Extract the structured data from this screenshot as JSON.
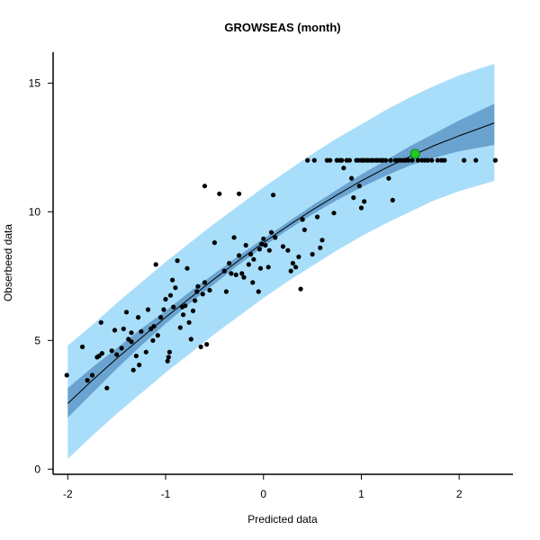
{
  "chart_data": {
    "type": "scatter",
    "title": "GROWSEAS (month)",
    "xlabel": "Predicted data",
    "ylabel": "Obserbeed data",
    "xlim": [
      -2.15,
      2.55
    ],
    "ylim": [
      -0.2,
      16.2
    ],
    "x_ticks": [
      -2,
      -1,
      0,
      1,
      2
    ],
    "y_ticks": [
      0,
      5,
      10,
      15
    ],
    "x_tick_labels": [
      "-2",
      "-1",
      "0",
      "1",
      "2"
    ],
    "y_tick_labels": [
      "0",
      "5",
      "10",
      "15"
    ],
    "grid": false,
    "colors": {
      "prediction_band": "#a8defa",
      "confidence_band": "#6aa3cf",
      "fit_line": "#000000",
      "points": "#000000",
      "highlight_point": "#22cc22",
      "highlight_outline": "#118811"
    },
    "fit_curve": {
      "x": [
        -2.0,
        -1.75,
        -1.5,
        -1.25,
        -1.0,
        -0.75,
        -0.5,
        -0.25,
        0.0,
        0.25,
        0.5,
        0.75,
        1.0,
        1.25,
        1.5,
        1.75,
        2.0,
        2.36
      ],
      "fit": [
        2.55,
        3.45,
        4.3,
        5.1,
        5.9,
        6.65,
        7.4,
        8.12,
        8.8,
        9.45,
        10.07,
        10.65,
        11.2,
        11.7,
        12.15,
        12.58,
        12.95,
        13.45
      ],
      "ci_lower": [
        2.0,
        2.95,
        3.9,
        4.8,
        5.65,
        6.45,
        7.2,
        7.95,
        8.65,
        9.3,
        9.9,
        10.45,
        10.95,
        11.4,
        11.8,
        12.1,
        12.35,
        12.6
      ],
      "ci_upper": [
        3.15,
        3.95,
        4.7,
        5.45,
        6.15,
        6.9,
        7.6,
        8.3,
        8.95,
        9.6,
        10.25,
        10.85,
        11.45,
        12.0,
        12.55,
        13.05,
        13.55,
        14.2
      ],
      "pi_lower": [
        0.4,
        1.3,
        2.15,
        2.95,
        3.75,
        4.5,
        5.25,
        5.95,
        6.65,
        7.3,
        7.9,
        8.5,
        9.05,
        9.55,
        10.0,
        10.45,
        10.8,
        11.2
      ],
      "pi_upper": [
        4.8,
        5.6,
        6.45,
        7.25,
        8.05,
        8.8,
        9.55,
        10.25,
        10.95,
        11.6,
        12.25,
        12.85,
        13.4,
        13.95,
        14.45,
        14.9,
        15.3,
        15.75
      ]
    },
    "points": [
      [
        -2.01,
        3.65
      ],
      [
        -1.85,
        4.75
      ],
      [
        -1.8,
        3.45
      ],
      [
        -1.75,
        3.65
      ],
      [
        -1.7,
        4.35
      ],
      [
        -1.68,
        4.4
      ],
      [
        -1.66,
        5.7
      ],
      [
        -1.65,
        4.5
      ],
      [
        -1.6,
        3.15
      ],
      [
        -1.55,
        4.6
      ],
      [
        -1.52,
        5.4
      ],
      [
        -1.5,
        4.45
      ],
      [
        -1.45,
        4.7
      ],
      [
        -1.43,
        5.45
      ],
      [
        -1.4,
        6.1
      ],
      [
        -1.38,
        5.05
      ],
      [
        -1.35,
        5.3
      ],
      [
        -1.35,
        4.95
      ],
      [
        -1.33,
        3.85
      ],
      [
        -1.3,
        4.4
      ],
      [
        -1.28,
        5.9
      ],
      [
        -1.27,
        4.05
      ],
      [
        -1.25,
        5.35
      ],
      [
        -1.2,
        4.55
      ],
      [
        -1.18,
        6.2
      ],
      [
        -1.15,
        5.45
      ],
      [
        -1.13,
        5.0
      ],
      [
        -1.12,
        5.55
      ],
      [
        -1.1,
        7.95
      ],
      [
        -1.08,
        5.2
      ],
      [
        -1.05,
        5.9
      ],
      [
        -1.02,
        6.2
      ],
      [
        -1.0,
        6.6
      ],
      [
        -0.98,
        4.2
      ],
      [
        -0.97,
        4.35
      ],
      [
        -0.96,
        4.55
      ],
      [
        -0.95,
        6.75
      ],
      [
        -0.93,
        7.35
      ],
      [
        -0.92,
        6.3
      ],
      [
        -0.9,
        7.05
      ],
      [
        -0.88,
        8.1
      ],
      [
        -0.85,
        5.5
      ],
      [
        -0.83,
        6.3
      ],
      [
        -0.82,
        6.0
      ],
      [
        -0.8,
        6.35
      ],
      [
        -0.78,
        7.8
      ],
      [
        -0.76,
        5.7
      ],
      [
        -0.74,
        5.05
      ],
      [
        -0.72,
        6.15
      ],
      [
        -0.7,
        6.55
      ],
      [
        -0.68,
        6.9
      ],
      [
        -0.67,
        7.1
      ],
      [
        -0.64,
        4.75
      ],
      [
        -0.62,
        6.8
      ],
      [
        -0.6,
        7.25
      ],
      [
        -0.58,
        4.85
      ],
      [
        -0.6,
        11.0
      ],
      [
        -0.55,
        6.95
      ],
      [
        -0.5,
        8.8
      ],
      [
        -0.45,
        10.7
      ],
      [
        -0.4,
        7.7
      ],
      [
        -0.38,
        6.9
      ],
      [
        -0.35,
        8.0
      ],
      [
        -0.33,
        7.6
      ],
      [
        -0.3,
        9.0
      ],
      [
        -0.28,
        7.55
      ],
      [
        -0.25,
        10.7
      ],
      [
        -0.25,
        8.3
      ],
      [
        -0.22,
        7.6
      ],
      [
        -0.2,
        7.45
      ],
      [
        -0.18,
        8.7
      ],
      [
        -0.15,
        7.95
      ],
      [
        -0.13,
        8.35
      ],
      [
        -0.11,
        7.25
      ],
      [
        -0.1,
        8.15
      ],
      [
        -0.05,
        6.9
      ],
      [
        -0.04,
        8.55
      ],
      [
        -0.03,
        7.8
      ],
      [
        -0.02,
        8.75
      ],
      [
        0.0,
        8.95
      ],
      [
        0.02,
        8.7
      ],
      [
        0.05,
        7.85
      ],
      [
        0.06,
        8.5
      ],
      [
        0.08,
        9.2
      ],
      [
        0.1,
        10.65
      ],
      [
        0.12,
        9.0
      ],
      [
        0.2,
        8.65
      ],
      [
        0.25,
        8.5
      ],
      [
        0.28,
        7.7
      ],
      [
        0.3,
        8.0
      ],
      [
        0.33,
        7.85
      ],
      [
        0.36,
        8.25
      ],
      [
        0.38,
        7.0
      ],
      [
        0.4,
        9.7
      ],
      [
        0.42,
        9.3
      ],
      [
        0.45,
        12.0
      ],
      [
        0.5,
        8.35
      ],
      [
        0.52,
        12.0
      ],
      [
        0.55,
        9.8
      ],
      [
        0.58,
        8.6
      ],
      [
        0.6,
        8.9
      ],
      [
        0.65,
        12.0
      ],
      [
        0.68,
        12.0
      ],
      [
        0.72,
        9.95
      ],
      [
        0.75,
        12.0
      ],
      [
        0.78,
        12.0
      ],
      [
        0.8,
        12.0
      ],
      [
        0.82,
        11.7
      ],
      [
        0.85,
        12.0
      ],
      [
        0.88,
        12.0
      ],
      [
        0.9,
        11.3
      ],
      [
        0.92,
        10.55
      ],
      [
        0.95,
        12.0
      ],
      [
        0.97,
        12.0
      ],
      [
        0.98,
        11.0
      ],
      [
        1.0,
        12.0
      ],
      [
        1.0,
        10.15
      ],
      [
        1.02,
        12.0
      ],
      [
        1.03,
        10.4
      ],
      [
        1.05,
        12.0
      ],
      [
        1.07,
        12.0
      ],
      [
        1.1,
        12.0
      ],
      [
        1.12,
        12.0
      ],
      [
        1.15,
        12.0
      ],
      [
        1.17,
        12.0
      ],
      [
        1.2,
        12.0
      ],
      [
        1.22,
        12.0
      ],
      [
        1.25,
        12.0
      ],
      [
        1.28,
        11.3
      ],
      [
        1.3,
        12.0
      ],
      [
        1.32,
        10.45
      ],
      [
        1.35,
        12.0
      ],
      [
        1.38,
        12.0
      ],
      [
        1.4,
        12.0
      ],
      [
        1.43,
        12.0
      ],
      [
        1.45,
        12.0
      ],
      [
        1.48,
        12.0
      ],
      [
        1.52,
        12.0
      ],
      [
        1.58,
        12.0
      ],
      [
        1.62,
        12.0
      ],
      [
        1.65,
        12.0
      ],
      [
        1.68,
        12.0
      ],
      [
        1.72,
        12.0
      ],
      [
        1.78,
        12.0
      ],
      [
        1.82,
        12.0
      ],
      [
        1.85,
        12.0
      ],
      [
        2.05,
        12.0
      ],
      [
        2.17,
        12.0
      ],
      [
        2.37,
        12.0
      ]
    ],
    "highlight_point": [
      1.55,
      12.25
    ]
  }
}
